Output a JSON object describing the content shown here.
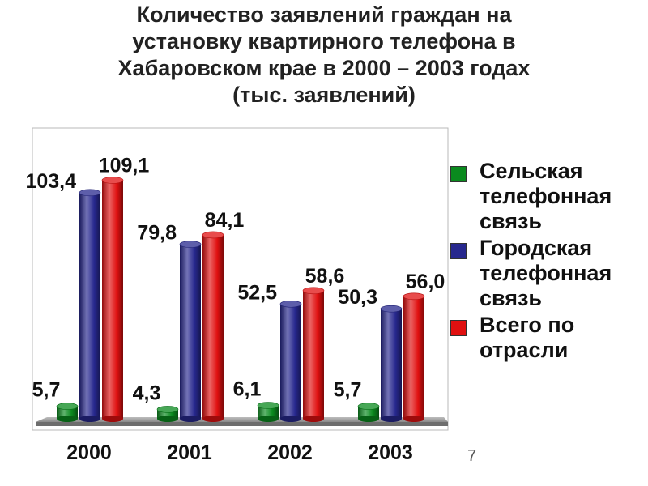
{
  "chart_data": {
    "type": "bar",
    "title_lines": [
      "Количество заявлений граждан на",
      "установку квартирного телефона в",
      "Хабаровском крае в 2000 – 2003 годах",
      "(тыс. заявлений)"
    ],
    "categories": [
      "2000",
      "2001",
      "2002",
      "2003"
    ],
    "series": [
      {
        "name": "Сельская\nтелефонная\nсвязь",
        "color": "#0a8a1e",
        "values": [
          5.7,
          4.3,
          6.1,
          5.7
        ],
        "labels": [
          "5,7",
          "4,3",
          "6,1",
          "5,7"
        ]
      },
      {
        "name": "Городская\nтелефонная\nсвязь",
        "color": "#27288e",
        "values": [
          103.4,
          79.8,
          52.5,
          50.3
        ],
        "labels": [
          "103,4",
          "79,8",
          "52,5",
          "50,3"
        ]
      },
      {
        "name": "Всего по\nотрасли",
        "color": "#e01010",
        "values": [
          109.1,
          84.1,
          58.6,
          56.0
        ],
        "labels": [
          "109,1",
          "84,1",
          "58,6",
          "56,0"
        ]
      }
    ],
    "ylim": [
      0,
      120
    ],
    "grid": false,
    "legend_position": "right",
    "bar_style": "3d-cylinder"
  },
  "page_number": "7"
}
